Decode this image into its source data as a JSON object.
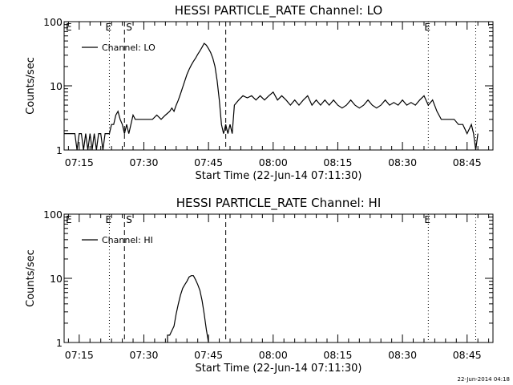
{
  "chart_data": [
    {
      "type": "line",
      "title": "HESSI PARTICLE_RATE Channel: LO",
      "xlabel": "Start Time (22-Jun-14 07:11:30)",
      "ylabel": "Counts/sec",
      "y_scale": "log",
      "ylim": [
        1,
        100
      ],
      "xlim": [
        "07:11:30",
        "08:51:00"
      ],
      "y_tick_labels": [
        "1",
        "10",
        "100"
      ],
      "x_tick_labels": [
        "07:15",
        "07:30",
        "07:45",
        "08:00",
        "08:15",
        "08:30",
        "08:45"
      ],
      "legend": "top-left",
      "grid": false,
      "markers": [
        {
          "label": "E",
          "time": "07:22:00",
          "style": "dotted"
        },
        {
          "label": "S",
          "time": "07:25:30",
          "style": "dashed"
        },
        {
          "label": "",
          "time": "07:49:00",
          "style": "dashed"
        },
        {
          "label": "E",
          "time": "08:36:00",
          "style": "dotted"
        },
        {
          "label": "",
          "time": "08:47:00",
          "style": "dotted"
        }
      ],
      "series": [
        {
          "name": "Channel: LO",
          "x": [
            "07:11:30",
            "07:14:00",
            "07:14:30",
            "07:15:00",
            "07:15:30",
            "07:16:00",
            "07:16:30",
            "07:17:00",
            "07:17:30",
            "07:18:00",
            "07:18:30",
            "07:19:00",
            "07:19:30",
            "07:20:00",
            "07:20:30",
            "07:21:00",
            "07:21:30",
            "07:22:00",
            "07:22:30",
            "07:23:00",
            "07:23:30",
            "07:24:00",
            "07:24:30",
            "07:25:00",
            "07:25:30",
            "07:26:00",
            "07:26:30",
            "07:27:00",
            "07:27:30",
            "07:28:00",
            "07:29:00",
            "07:30:00",
            "07:31:00",
            "07:32:00",
            "07:33:00",
            "07:34:00",
            "07:35:00",
            "07:36:00",
            "07:36:30",
            "07:37:00",
            "07:37:30",
            "07:38:00",
            "07:38:30",
            "07:39:00",
            "07:39:30",
            "07:40:00",
            "07:40:30",
            "07:41:00",
            "07:41:30",
            "07:42:00",
            "07:42:30",
            "07:43:00",
            "07:43:30",
            "07:44:00",
            "07:44:30",
            "07:45:00",
            "07:45:30",
            "07:46:00",
            "07:46:30",
            "07:47:00",
            "07:47:30",
            "07:48:00",
            "07:48:30",
            "07:49:00",
            "07:49:30",
            "07:50:00",
            "07:50:30",
            "07:51:00",
            "07:52:00",
            "07:53:00",
            "07:54:00",
            "07:55:00",
            "07:56:00",
            "07:57:00",
            "07:58:00",
            "07:59:00",
            "08:00:00",
            "08:01:00",
            "08:02:00",
            "08:03:00",
            "08:04:00",
            "08:05:00",
            "08:06:00",
            "08:07:00",
            "08:08:00",
            "08:09:00",
            "08:10:00",
            "08:11:00",
            "08:12:00",
            "08:13:00",
            "08:14:00",
            "08:15:00",
            "08:16:00",
            "08:17:00",
            "08:18:00",
            "08:19:00",
            "08:20:00",
            "08:21:00",
            "08:22:00",
            "08:23:00",
            "08:24:00",
            "08:25:00",
            "08:26:00",
            "08:27:00",
            "08:28:00",
            "08:29:00",
            "08:30:00",
            "08:31:00",
            "08:32:00",
            "08:33:00",
            "08:34:00",
            "08:35:00",
            "08:36:00",
            "08:37:00",
            "08:38:00",
            "08:39:00",
            "08:40:00",
            "08:41:00",
            "08:42:00",
            "08:43:00",
            "08:44:00",
            "08:45:00",
            "08:46:00",
            "08:46:30",
            "08:47:00",
            "08:47:30"
          ],
          "y": [
            1.8,
            1.8,
            1,
            1.8,
            1.8,
            1,
            1.8,
            1,
            1.8,
            1,
            1.8,
            1,
            1.8,
            1.8,
            1,
            1.8,
            1.8,
            1.8,
            2.5,
            2.5,
            3.5,
            4,
            3,
            2.5,
            1.8,
            2.5,
            1.8,
            2.5,
            3.5,
            3,
            3,
            3,
            3,
            3,
            3.5,
            3,
            3.5,
            4,
            4.5,
            4,
            5,
            6,
            7.5,
            9.5,
            12,
            15,
            18,
            21,
            24,
            27,
            31,
            35,
            40,
            46,
            43,
            38,
            33,
            27,
            20,
            12,
            6,
            2.5,
            1.8,
            2.5,
            1.8,
            2.5,
            1.8,
            5,
            6,
            7,
            6.5,
            7,
            6,
            7,
            6,
            7,
            8,
            6,
            7,
            6,
            5,
            6,
            5,
            6,
            7,
            5,
            6,
            5,
            6,
            5,
            6,
            5,
            4.5,
            5,
            6,
            5,
            4.5,
            5,
            6,
            5,
            4.5,
            5,
            6,
            5,
            5.5,
            5,
            6,
            5,
            5.5,
            5,
            6,
            7,
            5,
            6,
            4,
            3,
            3,
            3,
            3,
            2.5,
            2.5,
            1.8,
            2.5,
            1.8,
            1,
            1.8
          ]
        }
      ]
    },
    {
      "type": "line",
      "title": "HESSI PARTICLE_RATE Channel: HI",
      "xlabel": "Start Time (22-Jun-14 07:11:30)",
      "ylabel": "Counts/sec",
      "y_scale": "log",
      "ylim": [
        1,
        100
      ],
      "xlim": [
        "07:11:30",
        "08:51:00"
      ],
      "y_tick_labels": [
        "1",
        "10",
        "100"
      ],
      "x_tick_labels": [
        "07:15",
        "07:30",
        "07:45",
        "08:00",
        "08:15",
        "08:30",
        "08:45"
      ],
      "legend": "top-left",
      "grid": false,
      "markers": [
        {
          "label": "E",
          "time": "07:22:00",
          "style": "dotted"
        },
        {
          "label": "S",
          "time": "07:25:30",
          "style": "dashed"
        },
        {
          "label": "",
          "time": "07:49:00",
          "style": "dashed"
        },
        {
          "label": "E",
          "time": "08:36:00",
          "style": "dotted"
        },
        {
          "label": "",
          "time": "08:47:00",
          "style": "dotted"
        }
      ],
      "series": [
        {
          "name": "Channel: HI",
          "x": [
            "07:35:30",
            "07:35:30",
            "07:36:00",
            "07:37:00",
            "07:37:30",
            "07:38:00",
            "07:38:30",
            "07:39:00",
            "07:39:30",
            "07:40:00",
            "07:40:30",
            "07:41:00",
            "07:41:30",
            "07:42:00",
            "07:42:30",
            "07:43:00",
            "07:43:30",
            "07:44:00",
            "07:44:30",
            "07:45:00"
          ],
          "y": [
            1,
            1.3,
            1.3,
            1.8,
            2.8,
            4,
            5.5,
            7,
            8,
            9,
            10.5,
            11,
            11,
            9.5,
            8,
            6.5,
            4.5,
            2.8,
            1.6,
            1
          ]
        }
      ]
    }
  ],
  "footer": {
    "timestamp": "22-Jun-2014 04:18"
  }
}
